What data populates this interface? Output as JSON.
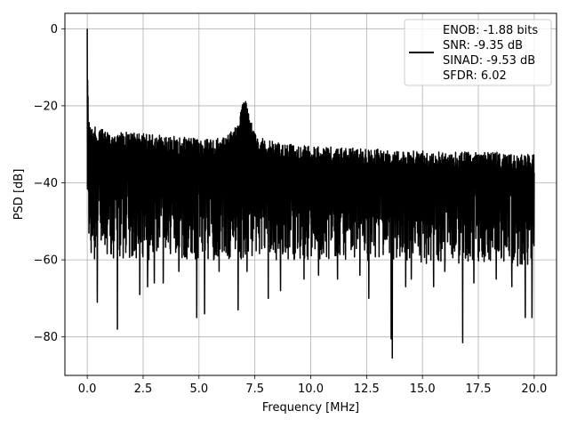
{
  "chart_data": {
    "type": "line",
    "title": "",
    "xlabel": "Frequency [MHz]",
    "ylabel": "PSD [dB]",
    "xlim": [
      -1.0,
      21.0
    ],
    "ylim": [
      -90,
      4
    ],
    "xticks": [
      0.0,
      2.5,
      5.0,
      7.5,
      10.0,
      12.5,
      15.0,
      17.5,
      20.0
    ],
    "xtick_labels": [
      "0.0",
      "2.5",
      "5.0",
      "7.5",
      "10.0",
      "12.5",
      "15.0",
      "17.5",
      "20.0"
    ],
    "yticks": [
      0,
      -20,
      -40,
      -60,
      -80
    ],
    "ytick_labels": [
      "0",
      "−20",
      "−40",
      "−60",
      "−80"
    ],
    "grid": true,
    "legend": {
      "placement": "upper-right",
      "entries": [
        "ENOB: -1.88 bits",
        "SNR: -9.35 dB",
        "SINAD: -9.53 dB",
        "SFDR: 6.02"
      ]
    },
    "series": [
      {
        "color": "#000000",
        "x": [
          0.0,
          0.02,
          0.04,
          0.06,
          0.1,
          0.2,
          0.5,
          1.0,
          2.0,
          3.0,
          4.0,
          5.0,
          6.0,
          6.6,
          6.9,
          7.05,
          7.2,
          7.5,
          8.0,
          10.0,
          12.0,
          14.0,
          16.0,
          18.0,
          20.0
        ],
        "upper": [
          0,
          -10,
          -20,
          -22,
          -24,
          -25,
          -26,
          -26.5,
          -27,
          -27.5,
          -28,
          -28.5,
          -28.5,
          -26,
          -21,
          -17,
          -21,
          -27,
          -29,
          -30.5,
          -31,
          -31.5,
          -32,
          -32,
          -32.5
        ],
        "lower": [
          -45,
          -55,
          -60,
          -60,
          -60,
          -60,
          -60,
          -60,
          -60,
          -60,
          -60,
          -60,
          -60,
          -60,
          -60,
          -60,
          -60,
          -60,
          -60,
          -60,
          -60,
          -61,
          -61,
          -61,
          -62
        ],
        "dips": [
          [
            0.45,
            -71
          ],
          [
            1.35,
            -78
          ],
          [
            2.35,
            -69
          ],
          [
            2.7,
            -67
          ],
          [
            3.0,
            -66
          ],
          [
            3.4,
            -66
          ],
          [
            4.1,
            -63
          ],
          [
            4.9,
            -75
          ],
          [
            5.25,
            -74
          ],
          [
            5.9,
            -63
          ],
          [
            6.75,
            -73
          ],
          [
            7.15,
            -63
          ],
          [
            8.1,
            -70
          ],
          [
            8.65,
            -68
          ],
          [
            9.7,
            -65
          ],
          [
            10.35,
            -64
          ],
          [
            11.2,
            -65
          ],
          [
            12.2,
            -64
          ],
          [
            12.6,
            -70
          ],
          [
            13.6,
            -80.5
          ],
          [
            13.65,
            -85.5
          ],
          [
            14.25,
            -67
          ],
          [
            14.5,
            -65
          ],
          [
            15.5,
            -67
          ],
          [
            16.0,
            -63
          ],
          [
            16.8,
            -81.5
          ],
          [
            17.3,
            -66
          ],
          [
            18.3,
            -65
          ],
          [
            19.0,
            -67
          ],
          [
            19.6,
            -75
          ],
          [
            19.9,
            -75
          ]
        ]
      }
    ]
  }
}
